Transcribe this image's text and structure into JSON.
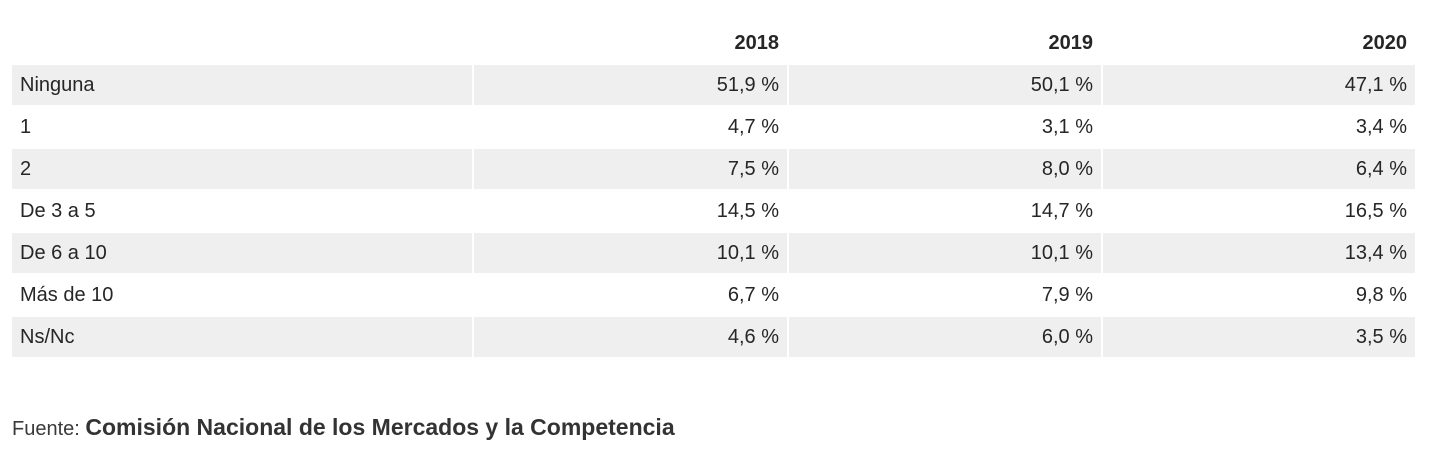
{
  "chart_data": {
    "type": "table",
    "columns": [
      "",
      "2018",
      "2019",
      "2020"
    ],
    "rows": [
      {
        "label": "Ninguna",
        "values": [
          "51,9 %",
          "50,1 %",
          "47,1 %"
        ]
      },
      {
        "label": "1",
        "values": [
          "4,7 %",
          "3,1 %",
          "3,4 %"
        ]
      },
      {
        "label": "2",
        "values": [
          "7,5 %",
          "8,0 %",
          "6,4 %"
        ]
      },
      {
        "label": "De 3 a 5",
        "values": [
          "14,5 %",
          "14,7 %",
          "16,5 %"
        ]
      },
      {
        "label": "De 6 a 10",
        "values": [
          "10,1 %",
          "10,1 %",
          "13,4 %"
        ]
      },
      {
        "label": "Más de 10",
        "values": [
          "6,7 %",
          "7,9 %",
          "9,8 %"
        ]
      },
      {
        "label": "Ns/Nc",
        "values": [
          "4,6 %",
          "6,0 %",
          "3,5 %"
        ]
      }
    ]
  },
  "source": {
    "prefix": "Fuente: ",
    "name": "Comisión Nacional de los Mercados y la Competencia"
  },
  "colors": {
    "row_shade": "#efefef",
    "text": "#262626"
  }
}
